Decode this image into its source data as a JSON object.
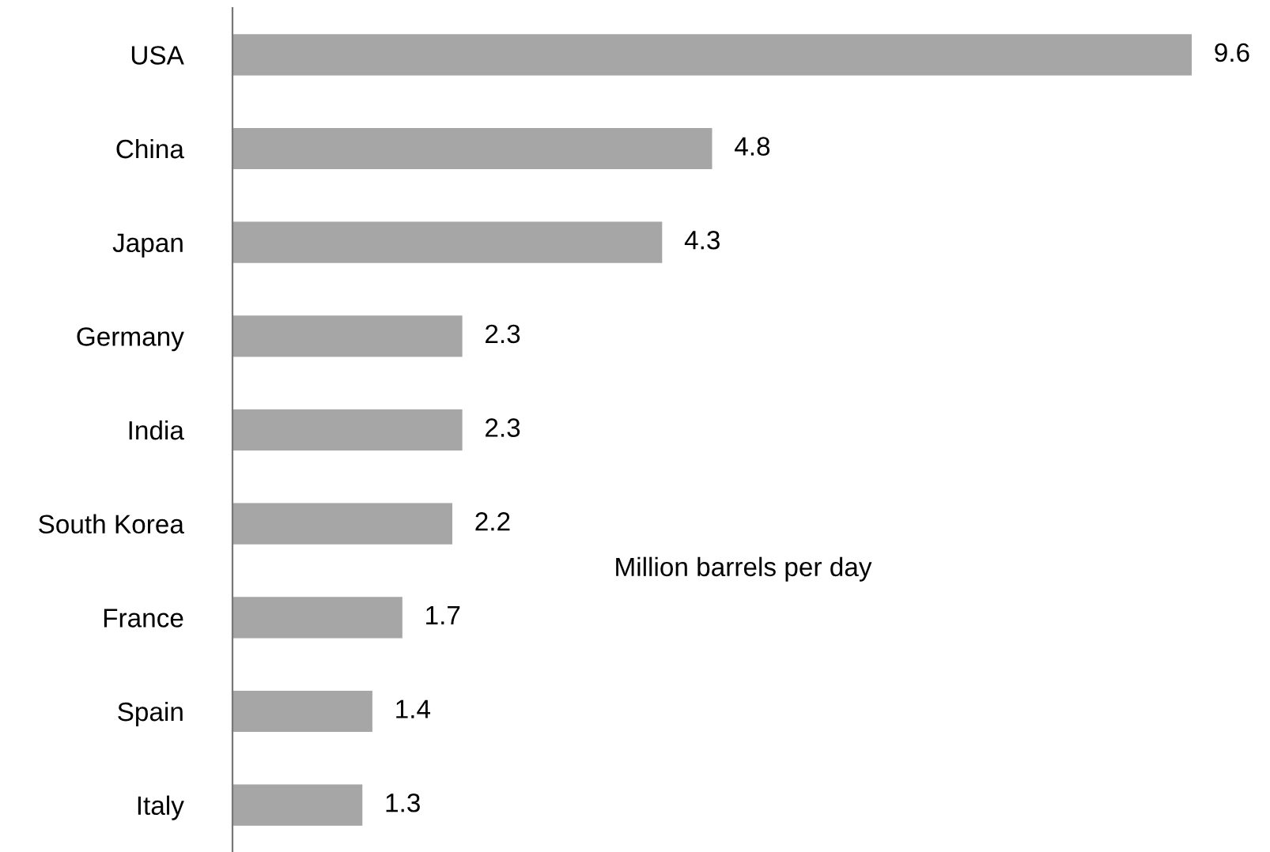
{
  "chart_data": {
    "type": "bar",
    "orientation": "horizontal",
    "categories": [
      "USA",
      "China",
      "Japan",
      "Germany",
      "India",
      "South Korea",
      "France",
      "Spain",
      "Italy"
    ],
    "values": [
      9.6,
      4.8,
      4.3,
      2.3,
      2.3,
      2.2,
      1.7,
      1.4,
      1.3
    ],
    "color": "#a6a6a6",
    "data_labels": true,
    "tick_labels": "y",
    "grid": false,
    "legend": false,
    "annotations": [
      "Million barrels per day"
    ]
  }
}
